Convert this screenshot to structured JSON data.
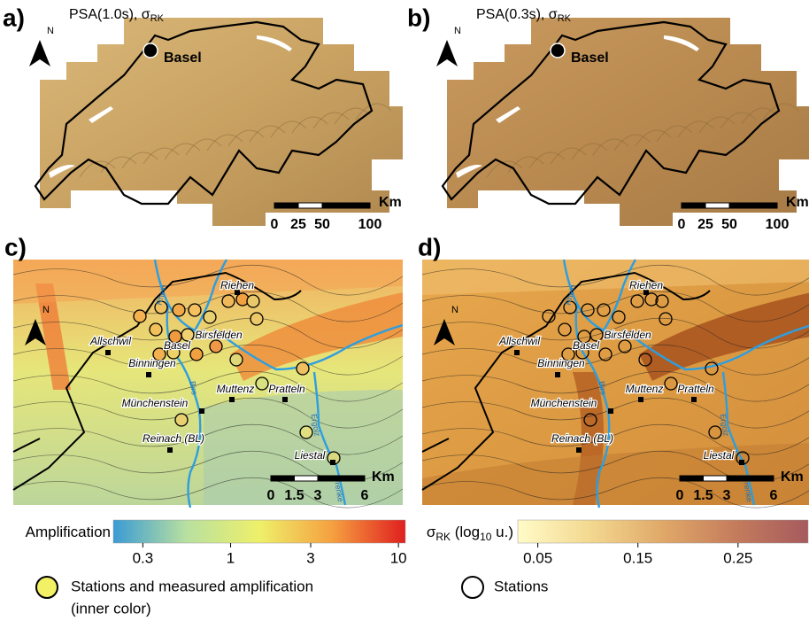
{
  "panels": [
    {
      "label": "a)",
      "title": "PSA(1.0s), σ",
      "title_sub": "RK",
      "north": "N",
      "city": "Basel",
      "scale": {
        "unit": "Km",
        "lim": [
          0,
          100
        ],
        "ticks": [
          0,
          25,
          50,
          100
        ]
      }
    },
    {
      "label": "b)",
      "title": "PSA(0.3s), σ",
      "title_sub": "RK",
      "north": "N",
      "city": "Basel",
      "scale": {
        "unit": "Km",
        "lim": [
          0,
          100
        ],
        "ticks": [
          0,
          25,
          50,
          100
        ]
      }
    },
    {
      "label": "c)",
      "north": "N",
      "places": [
        "Riehen",
        "Allschwil",
        "Basel",
        "Birsfelden",
        "Binningen",
        "Muttenz",
        "Pratteln",
        "Münchenstein",
        "Reinach (BL)",
        "Liestal"
      ],
      "rivers": [
        "Rhein",
        "Birs",
        "Ergolz",
        "Frenke"
      ],
      "scale": {
        "unit": "Km",
        "lim": [
          0,
          6
        ],
        "ticks": [
          0,
          1.5,
          3,
          6
        ]
      }
    },
    {
      "label": "d)",
      "north": "N",
      "places": [
        "Riehen",
        "Allschwil",
        "Basel",
        "Birsfelden",
        "Binningen",
        "Muttenz",
        "Pratteln",
        "Münchenstein",
        "Reinach (BL)",
        "Liestal"
      ],
      "rivers": [
        "Rhein",
        "Birs",
        "Ergolz",
        "Frenke"
      ],
      "scale": {
        "unit": "Km",
        "lim": [
          0,
          6
        ],
        "ticks": [
          0,
          1.5,
          3,
          6
        ]
      }
    }
  ],
  "colorbars": [
    {
      "title_parts": [
        {
          "text": "Amplification"
        }
      ],
      "log": true,
      "lim": [
        0.2,
        11
      ],
      "ticks": [
        0.3,
        1,
        3,
        10
      ],
      "colors": [
        "#3a9bd5",
        "#b8e0a0",
        "#eef06a",
        "#f5a040",
        "#e01f1f"
      ]
    },
    {
      "title_parts": [
        {
          "text": "σ"
        },
        {
          "text": "RK",
          "sub": true
        },
        {
          "text": " (log"
        },
        {
          "text": "10",
          "sub": true
        },
        {
          "text": " u.)"
        }
      ],
      "log": false,
      "lim": [
        0.03,
        0.32
      ],
      "ticks": [
        0.05,
        0.15,
        0.25
      ],
      "colors": [
        "#fffbc8",
        "#f3d890",
        "#e0a868",
        "#c47c5c",
        "#a65a5e"
      ]
    }
  ],
  "legend": [
    {
      "lines": [
        "Stations and measured amplification",
        "(inner color)"
      ],
      "color": "#f2f064"
    },
    {
      "lines": [
        "Stations"
      ],
      "color": "#ffffff"
    }
  ]
}
